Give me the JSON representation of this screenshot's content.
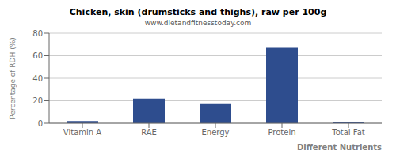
{
  "chart_data": {
    "type": "bar",
    "title": "Chicken, skin (drumsticks and thighs), raw per 100g",
    "subtitle": "www.dietandfitnesstoday.com",
    "xlabel": "Different Nutrients",
    "ylabel": "Percentage of RDH (%)",
    "categories": [
      "Vitamin A",
      "RAE",
      "Energy",
      "Protein",
      "Total Fat"
    ],
    "values": [
      2,
      22,
      17,
      67,
      1
    ],
    "color": "#2e4d8e",
    "ylim": [
      0,
      80
    ],
    "yticks": [
      0,
      20,
      40,
      60,
      80
    ],
    "grid": true
  }
}
